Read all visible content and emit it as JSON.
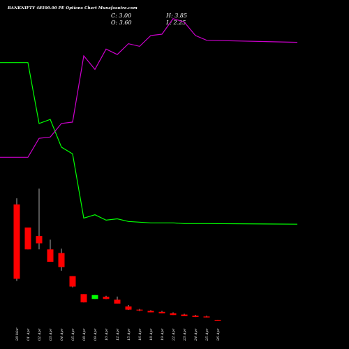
{
  "header": {
    "title": "BANKNIFTY 48500.00 PE Options Chart Munafasutra.com",
    "close": "C: 3.00",
    "high": "H: 3.85",
    "open": "O: 3.60",
    "low": "L: 2.25"
  },
  "colors": {
    "background": "#000000",
    "up": "#00ff00",
    "down": "#ff0000",
    "price_line": "#00ff00",
    "oi_line": "#cc00cc",
    "wick": "#aaaaaa"
  },
  "chart_data": {
    "type": "candlestick",
    "x": [
      "28 Mar",
      "01 Apr",
      "02 Apr",
      "03 Apr",
      "04 Apr",
      "05 Apr",
      "08 Apr",
      "09 Apr",
      "10 Apr",
      "12 Apr",
      "15 Apr",
      "16 Apr",
      "18 Apr",
      "19 Apr",
      "22 Apr",
      "23 Apr",
      "24 Apr",
      "25 Apr",
      "26 Apr"
    ],
    "series": [
      {
        "kind": "candles",
        "ohlc": [
          [
            480,
            505,
            165,
            174
          ],
          [
            385,
            380,
            310,
            295
          ],
          [
            350,
            545,
            295,
            320
          ],
          [
            295,
            335,
            265,
            244
          ],
          [
            280,
            298,
            207,
            222
          ],
          [
            185,
            182,
            139,
            142
          ],
          [
            111,
            108,
            78,
            77
          ],
          [
            91,
            96,
            104,
            107
          ],
          [
            100,
            104,
            90,
            91
          ],
          [
            88,
            101,
            75,
            72
          ],
          [
            60,
            66,
            46,
            47
          ],
          [
            47,
            50,
            41,
            44
          ],
          [
            42,
            45,
            38,
            36
          ],
          [
            38,
            42,
            34,
            32
          ],
          [
            32,
            36,
            27,
            25
          ],
          [
            27,
            30,
            22,
            20
          ],
          [
            22,
            26,
            18,
            17
          ],
          [
            19,
            22,
            16,
            15
          ],
          [
            3.6,
            3.85,
            2.25,
            3.0
          ]
        ]
      },
      {
        "kind": "line",
        "values": [
          480,
          480,
          390,
          396,
          355,
          345,
          250,
          255,
          247,
          249,
          245,
          244,
          243,
          243,
          243,
          242,
          242,
          242,
          241
        ]
      },
      {
        "kind": "line",
        "values": [
          340,
          340,
          368,
          370,
          390,
          392,
          490,
          470,
          500,
          492,
          508,
          504,
          520,
          522,
          545,
          540,
          520,
          513,
          510
        ]
      }
    ]
  }
}
